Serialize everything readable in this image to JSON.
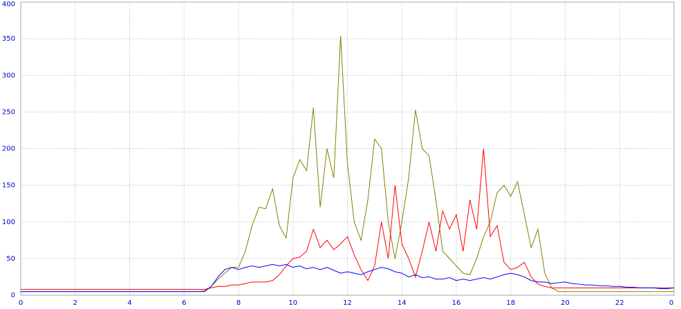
{
  "chart_data": {
    "type": "line",
    "x": [
      0,
      0.25,
      0.5,
      0.75,
      1,
      1.25,
      1.5,
      1.75,
      2,
      2.25,
      2.5,
      2.75,
      3,
      3.25,
      3.5,
      3.75,
      4,
      4.25,
      4.5,
      4.75,
      5,
      5.25,
      5.5,
      5.75,
      6,
      6.25,
      6.5,
      6.75,
      7,
      7.25,
      7.5,
      7.75,
      8,
      8.25,
      8.5,
      8.75,
      9,
      9.25,
      9.5,
      9.75,
      10,
      10.25,
      10.5,
      10.75,
      11,
      11.25,
      11.5,
      11.75,
      12,
      12.25,
      12.5,
      12.75,
      13,
      13.25,
      13.5,
      13.75,
      14,
      14.25,
      14.5,
      14.75,
      15,
      15.25,
      15.5,
      15.75,
      16,
      16.25,
      16.5,
      16.75,
      17,
      17.25,
      17.5,
      17.75,
      18,
      18.25,
      18.5,
      18.75,
      19,
      19.25,
      19.5,
      19.75,
      20,
      20.25,
      20.5,
      20.75,
      21,
      21.25,
      21.5,
      21.75,
      22,
      22.25,
      22.5,
      22.75,
      23,
      23.25,
      23.5,
      23.75,
      24
    ],
    "series": [
      {
        "color": "#808000",
        "values": [
          5,
          5,
          5,
          5,
          5,
          5,
          5,
          5,
          5,
          5,
          5,
          5,
          5,
          5,
          5,
          5,
          5,
          5,
          5,
          5,
          5,
          5,
          5,
          5,
          5,
          5,
          5,
          6,
          12,
          22,
          30,
          38,
          38,
          60,
          95,
          120,
          118,
          145,
          95,
          78,
          160,
          185,
          170,
          256,
          120,
          200,
          160,
          354,
          180,
          100,
          75,
          130,
          213,
          200,
          100,
          50,
          100,
          160,
          253,
          200,
          190,
          130,
          60,
          50,
          40,
          30,
          28,
          50,
          80,
          100,
          140,
          150,
          135,
          155,
          110,
          65,
          90,
          30,
          10,
          5,
          5,
          5,
          5,
          5,
          5,
          5,
          5,
          5,
          5,
          5,
          5,
          5,
          5,
          5,
          5,
          5,
          5
        ]
      },
      {
        "color": "#ff0000",
        "values": [
          8,
          8,
          8,
          8,
          8,
          8,
          8,
          8,
          8,
          8,
          8,
          8,
          8,
          8,
          8,
          8,
          8,
          8,
          8,
          8,
          8,
          8,
          8,
          8,
          8,
          8,
          8,
          8,
          10,
          12,
          12,
          14,
          14,
          16,
          18,
          18,
          18,
          20,
          28,
          40,
          50,
          52,
          60,
          90,
          65,
          75,
          62,
          70,
          80,
          55,
          35,
          20,
          40,
          100,
          50,
          150,
          70,
          50,
          25,
          60,
          100,
          60,
          115,
          90,
          110,
          60,
          130,
          90,
          200,
          80,
          95,
          45,
          35,
          38,
          45,
          25,
          15,
          12,
          10,
          10,
          10,
          10,
          10,
          10,
          10,
          10,
          10,
          10,
          10,
          10,
          10,
          10,
          10,
          10,
          10,
          10,
          10
        ]
      },
      {
        "color": "#0000ff",
        "values": [
          5,
          5,
          5,
          5,
          5,
          5,
          5,
          5,
          5,
          5,
          5,
          5,
          5,
          5,
          5,
          5,
          5,
          5,
          5,
          5,
          5,
          5,
          5,
          5,
          5,
          5,
          5,
          5,
          12,
          25,
          35,
          38,
          35,
          38,
          40,
          38,
          40,
          42,
          40,
          42,
          38,
          40,
          36,
          38,
          35,
          38,
          34,
          30,
          32,
          30,
          28,
          32,
          35,
          38,
          36,
          32,
          30,
          25,
          28,
          24,
          25,
          22,
          22,
          24,
          20,
          22,
          20,
          22,
          24,
          22,
          25,
          28,
          30,
          28,
          25,
          20,
          18,
          18,
          16,
          17,
          18,
          16,
          15,
          14,
          14,
          13,
          13,
          12,
          12,
          11,
          11,
          10,
          10,
          10,
          9,
          9,
          10
        ]
      }
    ],
    "xlim": [
      0,
      24
    ],
    "xticks": [
      0,
      2,
      4,
      6,
      8,
      10,
      12,
      14,
      16,
      18,
      20,
      22,
      {
        "value": 24,
        "label": "0"
      }
    ],
    "ylim": [
      0,
      400
    ],
    "yticks": [
      0,
      50,
      100,
      150,
      200,
      250,
      300,
      350,
      400
    ],
    "grid": true
  }
}
